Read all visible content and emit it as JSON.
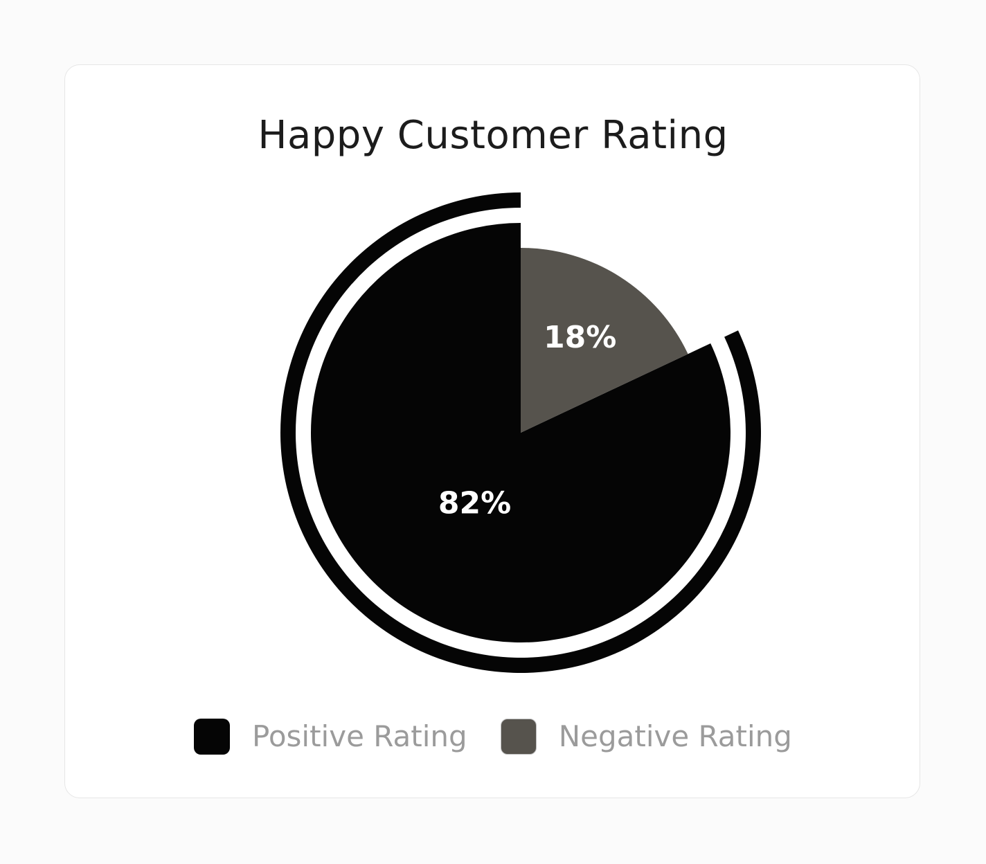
{
  "chart_data": {
    "type": "pie",
    "title": "Happy Customer Rating",
    "slices": [
      {
        "label": "Positive Rating",
        "value": 82,
        "display": "82%",
        "color": "#050505",
        "highlighted": true
      },
      {
        "label": "Negative Rating",
        "value": 18,
        "display": "18%",
        "color": "#56534d",
        "highlighted": false
      }
    ],
    "legend_position": "bottom"
  }
}
